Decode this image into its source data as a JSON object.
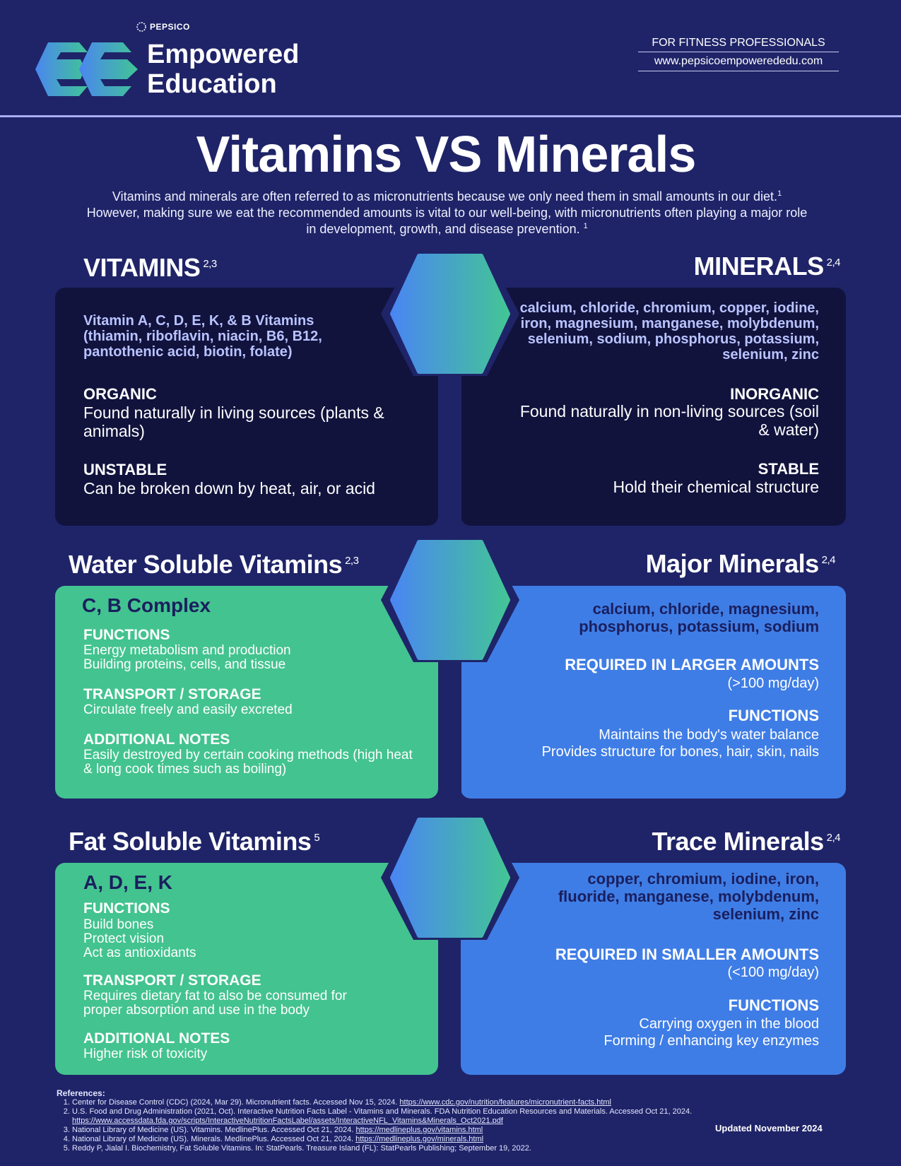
{
  "header": {
    "pepsico": "PEPSICO",
    "brand_line1": "Empowered",
    "brand_line2": "Education",
    "for_pros": "FOR FITNESS PROFESSIONALS",
    "site": "www.pepsicoempowerededu.com"
  },
  "title": "Vitamins VS Minerals",
  "intro": {
    "part1": "Vitamins and minerals are often referred to as micronutrients because we only need them in small amounts in our diet.",
    "sup1": "1",
    "part2": " However, making sure we eat the recommended amounts is vital to our well-being, with micronutrients often playing a major role in development, growth, and disease prevention. ",
    "sup2": "1"
  },
  "vitamins": {
    "heading": "VITAMINS",
    "sup": "2,3",
    "list": "Vitamin A, C, D, E, K, & B Vitamins (thiamin, riboflavin, niacin, B6, B12, pantothenic acid, biotin, folate)",
    "h1": "ORGANIC",
    "t1": "Found naturally in living sources (plants & animals)",
    "h2": "UNSTABLE",
    "t2": "Can be broken down by heat, air, or acid"
  },
  "minerals": {
    "heading": "MINERALS",
    "sup": "2,4",
    "list": "calcium, chloride, chromium, copper, iodine, iron, magnesium, manganese, molybdenum, selenium, sodium, phosphorus, potassium, selenium, zinc",
    "h1": "INORGANIC",
    "t1": "Found naturally in non-living sources (soil & water)",
    "h2": "STABLE",
    "t2": "Hold their chemical structure"
  },
  "water": {
    "heading": "Water Soluble Vitamins",
    "sup": "2,3",
    "title": "C, B Complex",
    "h1": "FUNCTIONS",
    "t1a": "Energy metabolism and production",
    "t1b": "Building proteins, cells, and tissue",
    "h2": "TRANSPORT / STORAGE",
    "t2": "Circulate freely and easily excreted",
    "h3": "ADDITIONAL NOTES",
    "t3": "Easily destroyed by certain cooking methods (high heat & long cook times such as boiling)"
  },
  "major": {
    "heading": "Major Minerals",
    "sup": "2,4",
    "list": "calcium, chloride, magnesium, phosphorus, potassium, sodium",
    "h1": "REQUIRED IN LARGER AMOUNTS",
    "t1": "(>100 mg/day)",
    "h2": "FUNCTIONS",
    "t2a": "Maintains the body's water balance",
    "t2b": "Provides structure for bones, hair, skin, nails"
  },
  "fat": {
    "heading": "Fat Soluble Vitamins",
    "sup": "5",
    "title": "A, D, E, K",
    "h1": "FUNCTIONS",
    "t1a": "Build bones",
    "t1b": "Protect vision",
    "t1c": "Act as antioxidants",
    "h2": "TRANSPORT / STORAGE",
    "t2": "Requires dietary fat to also be consumed for proper absorption and use in the body",
    "h3": "ADDITIONAL NOTES",
    "t3": "Higher risk of toxicity"
  },
  "trace": {
    "heading": "Trace Minerals",
    "sup": "2,4",
    "list": "copper, chromium, iodine, iron, fluoride, manganese, molybdenum, selenium, zinc",
    "h1": "REQUIRED IN SMALLER AMOUNTS",
    "t1": "(<100 mg/day)",
    "h2": "FUNCTIONS",
    "t2a": "Carrying oxygen in the blood",
    "t2b": "Forming / enhancing key enzymes"
  },
  "references": {
    "heading": "References:",
    "r1_text": "Center for Disease Control (CDC) (2024, Mar 29). Micronutrient facts. Accessed Nov 15, 2024. ",
    "r1_link": "https://www.cdc.gov/nutrition/features/micronutrient-facts.html",
    "r2_text": "U.S. Food and Drug Administration (2021, Oct). Interactive Nutrition Facts Label - Vitamins and Minerals. FDA Nutrition Education Resources and Materials. Accessed Oct 21, 2024. ",
    "r2_link": "https://www.accessdata.fda.gov/scripts/InteractiveNutritionFactsLabel/assets/InteractiveNFL_Vitamins&Minerals_Oct2021.pdf",
    "r3_text": "National Library of Medicine (US). Vitamins. MedlinePlus. Accessed Oct 21, 2024. ",
    "r3_link": "https://medlineplus.gov/vitamins.html",
    "r4_text": "National Library of Medicine (US). Minerals. MedlinePlus. Accessed Oct 21, 2024. ",
    "r4_link": "https://medlineplus.gov/minerals.html",
    "r5_text": "Reddy P, Jialal I. Biochemistry, Fat Soluble Vitamins. In: StatPearls. Treasure Island (FL): StatPearls Publishing; September 19, 2022."
  },
  "updated": "Updated November 2024",
  "icons": {
    "logo": "empowered-education-logo-icon",
    "pepsico": "pepsico-globe-icon",
    "hexagon": "hexagon-icon"
  },
  "colors": {
    "background": "#1f2468",
    "dark_card": "#11133d",
    "green_card": "#43c38f",
    "blue_card": "#3f7de6",
    "lavender_text": "#b9c3ff",
    "navy_text": "#1a1f5e"
  }
}
